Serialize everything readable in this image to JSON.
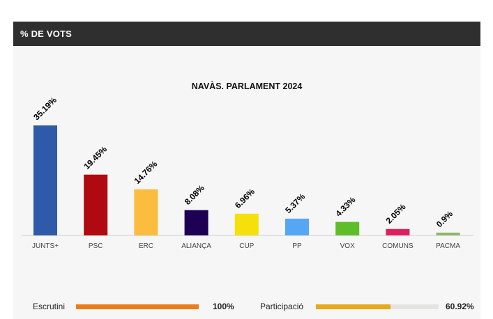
{
  "header": {
    "title": "% DE VOTS"
  },
  "chart_data": {
    "type": "bar",
    "title": "NAVÀS. PARLAMENT 2024",
    "xlabel": "",
    "ylabel": "",
    "ylim": [
      0,
      37
    ],
    "grid": false,
    "categories": [
      "JUNTS+",
      "PSC",
      "ERC",
      "ALIANÇA",
      "CUP",
      "PP",
      "VOX",
      "COMUNS",
      "PACMA"
    ],
    "values": [
      35.19,
      19.45,
      14.76,
      8.08,
      6.96,
      5.37,
      4.33,
      2.05,
      0.9
    ],
    "value_labels": [
      "35.19%",
      "19.45%",
      "14.76%",
      "8.08%",
      "6.96%",
      "5.37%",
      "4.33%",
      "2.05%",
      "0.9%"
    ],
    "colors": [
      "#2e5aa9",
      "#ae0a0f",
      "#fbbd3f",
      "#1d0054",
      "#f6e00b",
      "#57a6f5",
      "#5fbd2a",
      "#dd1f5e",
      "#8db866"
    ]
  },
  "footer": {
    "escrutini": {
      "label": "Escrutini",
      "value": "100%",
      "fraction": 1.0,
      "color": "#ee7c1a"
    },
    "participacio": {
      "label": "Participació",
      "value": "60.92%",
      "fraction": 0.6092,
      "color": "#e8a91a"
    }
  }
}
